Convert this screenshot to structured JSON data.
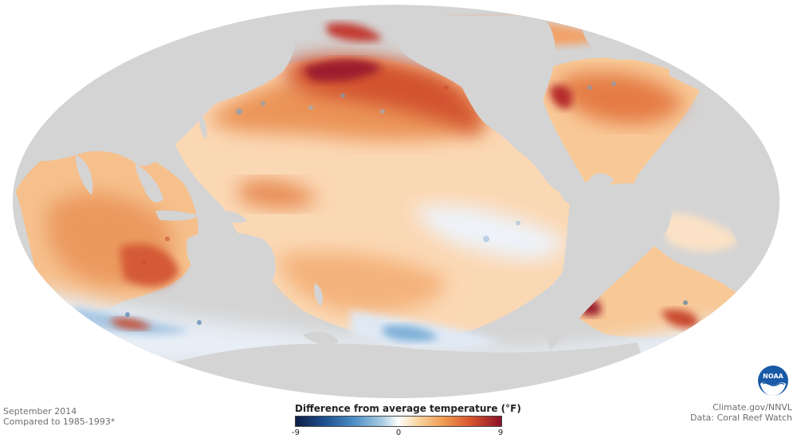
{
  "map": {
    "projection": "mollweide",
    "land_color": "#d4d4d4",
    "background_color": "#ffffff"
  },
  "credits": {
    "date": "September 2014",
    "baseline": "Compared to 1985-1993*",
    "source_site": "Climate.gov/NNVL",
    "data_source": "Data: Coral Reef Watch"
  },
  "legend": {
    "title": "Difference from average temperature (°F)",
    "ticks": [
      "-9",
      "0",
      "9"
    ],
    "colors": {
      "cold_end": "#0d1e46",
      "neutral": "#ffffff",
      "warm_end": "#8a1227"
    }
  },
  "logo": {
    "icon": "noaa-logo-icon",
    "text": "NOAA"
  }
}
